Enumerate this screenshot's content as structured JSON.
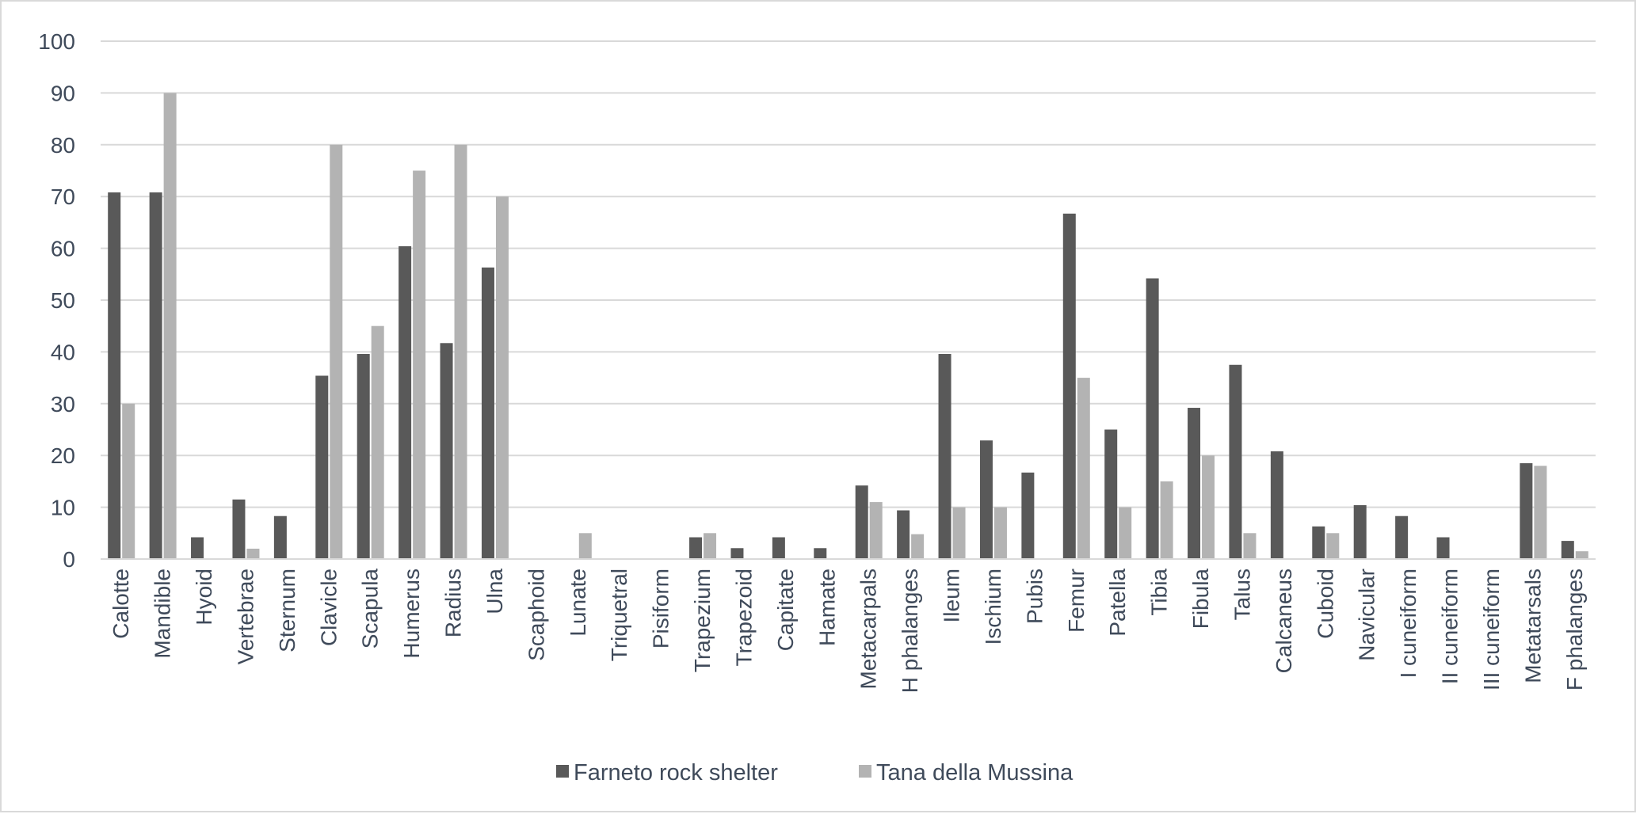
{
  "chart_data": {
    "type": "bar",
    "categories": [
      "Calotte",
      "Mandible",
      "Hyoid",
      "Vertebrae",
      "Sternum",
      "Clavicle",
      "Scapula",
      "Humerus",
      "Radius",
      "Ulna",
      "Scaphoid",
      "Lunate",
      "Triquetral",
      "Pisiform",
      "Trapezium",
      "Trapezoid",
      "Capitate",
      "Hamate",
      "Metacarpals",
      "H phalanges",
      "Ileum",
      "Ischium",
      "Pubis",
      "Femur",
      "Patella",
      "Tibia",
      "Fibula",
      "Talus",
      "Calcaneus",
      "Cuboid",
      "Navicular",
      "I cuneiform",
      "II cuneiform",
      "III cuneiform",
      "Metatarsals",
      "F phalanges"
    ],
    "series": [
      {
        "name": "Farneto rock shelter",
        "color": "#595959",
        "values": [
          70.8,
          70.8,
          4.2,
          11.5,
          8.3,
          35.4,
          39.6,
          60.4,
          41.7,
          56.3,
          0,
          0,
          0,
          0,
          4.2,
          2.1,
          4.2,
          2.1,
          14.2,
          9.4,
          39.6,
          22.9,
          16.7,
          66.7,
          25.0,
          54.2,
          29.2,
          37.5,
          20.8,
          6.3,
          10.4,
          8.3,
          4.2,
          0,
          18.5,
          3.5
        ]
      },
      {
        "name": "Tana della Mussina",
        "color": "#b3b3b3",
        "values": [
          30,
          90,
          0,
          2,
          0,
          80,
          45,
          75,
          80,
          70,
          0,
          5,
          0,
          0,
          5,
          0,
          0,
          0,
          11,
          4.8,
          10,
          10,
          0,
          35,
          10,
          15,
          20,
          5,
          0,
          5,
          0,
          0,
          0,
          0,
          18,
          1.5
        ]
      }
    ],
    "ylim": [
      0,
      100
    ],
    "yticks": [
      0,
      10,
      20,
      30,
      40,
      50,
      60,
      70,
      80,
      90,
      100
    ],
    "grid": true,
    "legend_position": "bottom-center"
  }
}
